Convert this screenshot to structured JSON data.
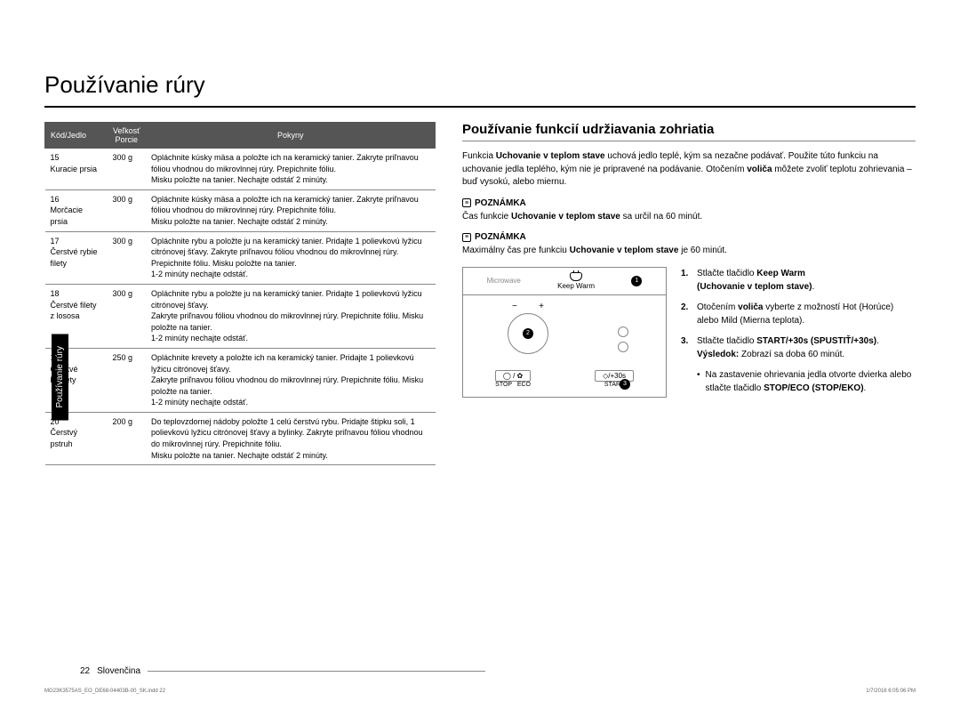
{
  "page_title": "Používanie rúry",
  "side_tab": "Používanie rúry",
  "table": {
    "headers": {
      "code": "Kód/Jedlo",
      "size": "Veľkosť\nPorcie",
      "instructions": "Pokyny"
    },
    "rows": [
      {
        "code": "15",
        "name": "Kuracie prsia",
        "size": "300 g",
        "instr": "Opláchnite kúsky mäsa a položte ich na keramický tanier. Zakryte priľnavou fóliou vhodnou do mikrovlnnej rúry. Prepichnite fóliu.\nMisku položte na tanier. Nechajte odstáť 2 minúty."
      },
      {
        "code": "16",
        "name": "Morčacie prsia",
        "size": "300 g",
        "instr": "Opláchnite kúsky mäsa a položte ich na keramický tanier. Zakryte priľnavou fóliou vhodnou do mikrovlnnej rúry. Prepichnite fóliu.\nMisku položte na tanier. Nechajte odstáť 2 minúty."
      },
      {
        "code": "17",
        "name": "Čerstvé rybie filety",
        "size": "300 g",
        "instr": "Opláchnite rybu a položte ju na keramický tanier. Pridajte 1 polievkovú lyžicu citrónovej šťavy. Zakryte priľnavou fóliou vhodnou do mikrovlnnej rúry. Prepichnite fóliu. Misku položte na tanier.\n1-2 minúty nechajte odstáť."
      },
      {
        "code": "18",
        "name": "Čerstvé filety z lososa",
        "size": "300 g",
        "instr": "Opláchnite rybu a položte ju na keramický tanier. Pridajte 1 polievkovú lyžicu citrónovej šťavy.\nZakryte priľnavou fóliou vhodnou do mikrovlnnej rúry. Prepichnite fóliu. Misku položte na tanier.\n1-2 minúty nechajte odstáť."
      },
      {
        "code": "19",
        "name": "Čerstvé krevety",
        "size": "250 g",
        "instr": "Opláchnite krevety a položte ich na keramický tanier. Pridajte 1 polievkovú lyžicu citrónovej šťavy.\nZakryte priľnavou fóliou vhodnou do mikrovlnnej rúry. Prepichnite fóliu. Misku položte na tanier.\n1-2 minúty nechajte odstáť."
      },
      {
        "code": "20",
        "name": "Čerstvý pstruh",
        "size": "200 g",
        "instr": "Do teplovzdornej nádoby položte 1 celú čerstvú rybu. Pridajte štipku soli, 1 polievkovú lyžicu citrónovej šťavy a bylinky. Zakryte priľnavou fóliou vhodnou do mikrovlnnej rúry. Prepichnite fóliu.\nMisku položte na tanier. Nechajte odstáť 2 minúty."
      }
    ]
  },
  "right": {
    "heading": "Používanie funkcií udržiavania zohriatia",
    "intro_pre": "Funkcia ",
    "intro_b1": "Uchovanie v teplom stave",
    "intro_mid": " uchová jedlo teplé, kým sa nezačne podávať. Použite túto funkciu na uchovanie jedla teplého, kým nie je pripravené na podávanie. Otočením ",
    "intro_b2": "voliča",
    "intro_post": " môžete zvoliť teplotu zohrievania – buď vysokú, alebo miernu.",
    "note_label": "POZNÁMKA",
    "note1_pre": "Čas funkcie ",
    "note1_b": "Uchovanie v teplom stave",
    "note1_post": " sa určil na 60 minút.",
    "note2_pre": "Maximálny čas pre funkciu ",
    "note2_b": "Uchovanie v teplom stave",
    "note2_post": " je 60 minút.",
    "panel": {
      "microwave": "Microwave",
      "keepwarm": "Keep Warm",
      "stop": "STOP",
      "eco": "ECO",
      "start": "START",
      "plus30": "/+30s",
      "m1": "1",
      "m2": "2",
      "m3": "3"
    },
    "steps": {
      "s1_num": "1.",
      "s1_pre": "Stlačte tlačidlo ",
      "s1_b1": "Keep Warm",
      "s1_b2": "(Uchovanie v teplom stave)",
      "s1_post": ".",
      "s2_num": "2.",
      "s2_pre": "Otočením ",
      "s2_b": "voliča",
      "s2_post": " vyberte z možností Hot (Horúce) alebo Mild (Mierna teplota).",
      "s3_num": "3.",
      "s3_pre": "Stlačte tlačidlo ",
      "s3_b": "START/+30s (SPUSTIŤ/+30s)",
      "s3_post": ".",
      "s3_result_label": "Výsledok:",
      "s3_result": " Zobrazí sa doba 60 minút.",
      "bullet_pre": "Na zastavenie ohrievania jedla otvorte dvierka alebo stlačte tlačidlo ",
      "bullet_b": "STOP/ECO (STOP/EKO)",
      "bullet_post": "."
    }
  },
  "footer_pagenum": "22",
  "footer_lang": "Slovenčina",
  "print_left": "MG23K3575AS_EO_DE68-04403B-00_SK.indd   22",
  "print_right": "1/7/2016   6:05:06 PM"
}
